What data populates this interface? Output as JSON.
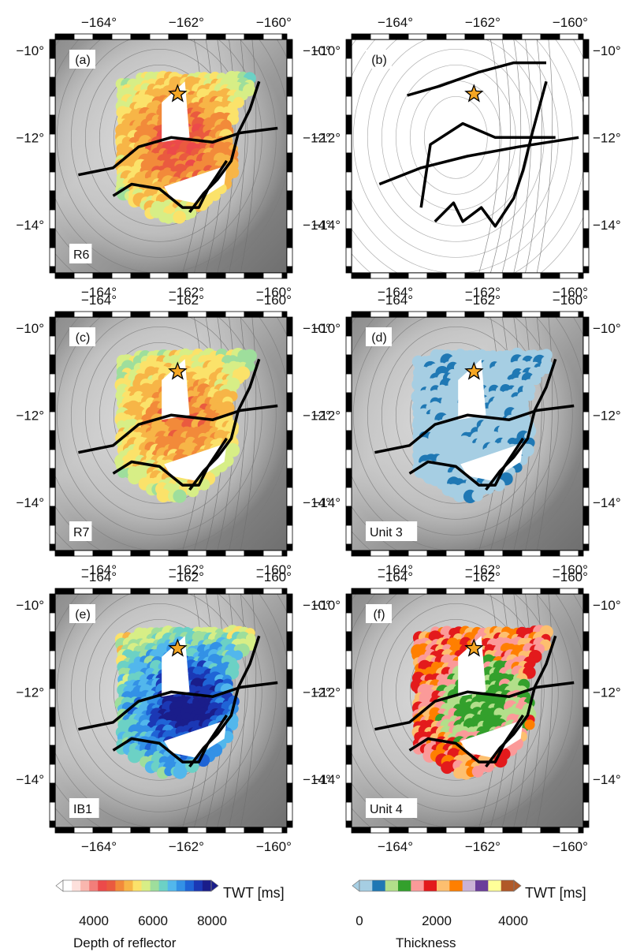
{
  "panels": [
    {
      "id": "a",
      "letter": "(a)",
      "tag": "R6",
      "fill": "shades_depth_r6"
    },
    {
      "id": "b",
      "letter": "(b)",
      "tag": "",
      "fill": "tracks_only"
    },
    {
      "id": "c",
      "letter": "(c)",
      "tag": "R7",
      "fill": "shades_depth_r7"
    },
    {
      "id": "d",
      "letter": "(d)",
      "tag": "Unit 3",
      "fill": "shades_thick_u3"
    },
    {
      "id": "e",
      "letter": "(e)",
      "tag": "IB1",
      "fill": "shades_depth_ib1"
    },
    {
      "id": "f",
      "letter": "(f)",
      "tag": "Unit 4",
      "fill": "shades_thick_u4"
    }
  ],
  "axes": {
    "lon_ticks": [
      "−164°",
      "−162°",
      "−160°"
    ],
    "lat_ticks": [
      "−10°",
      "−12°",
      "−14°"
    ],
    "lon_range": [
      -165.0,
      -159.7
    ],
    "lat_range": [
      -15.1,
      -9.75
    ]
  },
  "star": {
    "lon": -162.2,
    "lat": -11.0,
    "color": "#f5a623",
    "icon": "star-icon"
  },
  "colorbars": [
    {
      "id": "depth",
      "unit": "TWT [ms]",
      "ticks": [
        "4000",
        "6000",
        "8000"
      ],
      "tick_values": [
        4000,
        6000,
        8000
      ],
      "range": [
        3000,
        8000
      ],
      "caption": "Depth of reflector",
      "colors": [
        "#ffffff",
        "#fde0dc",
        "#f9b6ae",
        "#f27e7a",
        "#ec4a4a",
        "#ea5a3f",
        "#f28a3a",
        "#f7b547",
        "#fbe26a",
        "#d7ee86",
        "#9ede9c",
        "#6cd1c5",
        "#52b7ec",
        "#3391e6",
        "#1f64d6",
        "#1b38b5",
        "#1a1d8a"
      ]
    },
    {
      "id": "thickness",
      "unit": "TWT [ms]",
      "ticks": [
        "0",
        "2000",
        "4000"
      ],
      "tick_values": [
        0,
        2000,
        4000
      ],
      "range": [
        0,
        4000
      ],
      "caption": "Thickness",
      "colors": [
        "#a6cee3",
        "#1f78b4",
        "#b2df8a",
        "#33a02c",
        "#fb9a99",
        "#e31a1c",
        "#fdbf6f",
        "#ff7f00",
        "#cab2d6",
        "#6a3d9a",
        "#ffff99",
        "#b15928"
      ]
    }
  ]
}
